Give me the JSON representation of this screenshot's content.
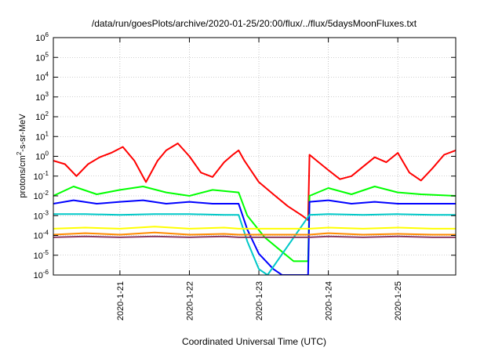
{
  "chart_data": {
    "type": "line",
    "title": "/data/run/goesPlots/archive/2020-01-25/20:00/flux/../flux/5daysMoonFluxes.txt",
    "xlabel": "Coordinated Universal Time (UTC)",
    "ylabel": "protons/cm²-s-sr-MeV",
    "ylabel_parts": {
      "pre": "protons/cm",
      "sup": "2",
      "post": "-s-sr-MeV"
    },
    "yscale": "log",
    "ylim": [
      1e-06,
      1000000.0
    ],
    "y_ticks": [
      {
        "base": "10",
        "exp": "6",
        "value": 1000000.0
      },
      {
        "base": "10",
        "exp": "5",
        "value": 100000.0
      },
      {
        "base": "10",
        "exp": "4",
        "value": 10000.0
      },
      {
        "base": "10",
        "exp": "3",
        "value": 1000.0
      },
      {
        "base": "10",
        "exp": "2",
        "value": 100.0
      },
      {
        "base": "10",
        "exp": "1",
        "value": 10.0
      },
      {
        "base": "10",
        "exp": "0",
        "value": 1.0
      },
      {
        "base": "10",
        "exp": "-1",
        "value": 0.1
      },
      {
        "base": "10",
        "exp": "-2",
        "value": 0.01
      },
      {
        "base": "10",
        "exp": "-3",
        "value": 0.001
      },
      {
        "base": "10",
        "exp": "-4",
        "value": 0.0001
      },
      {
        "base": "10",
        "exp": "-5",
        "value": 1e-05
      },
      {
        "base": "10",
        "exp": "-6",
        "value": 1e-06
      }
    ],
    "xlim": [
      "2020-01-20T01:00",
      "2020-01-25T20:00"
    ],
    "x_ticks": [
      {
        "label": "2020-1-21",
        "value": "2020-01-21T00:00"
      },
      {
        "label": "2020-1-22",
        "value": "2020-01-22T00:00"
      },
      {
        "label": "2020-1-23",
        "value": "2020-01-23T00:00"
      },
      {
        "label": "2020-1-24",
        "value": "2020-01-24T00:00"
      },
      {
        "label": "2020-1-25",
        "value": "2020-01-25T00:00"
      }
    ],
    "grid": true,
    "legend": "none",
    "series": [
      {
        "color": "#ff0000",
        "x": [
          "2020-01-20T01:00",
          "2020-01-20T05:00",
          "2020-01-20T09:00",
          "2020-01-20T13:00",
          "2020-01-20T17:00",
          "2020-01-20T21:00",
          "2020-01-21T01:00",
          "2020-01-21T05:00",
          "2020-01-21T09:00",
          "2020-01-21T13:00",
          "2020-01-21T16:00",
          "2020-01-21T20:00",
          "2020-01-22T00:00",
          "2020-01-22T04:00",
          "2020-01-22T08:00",
          "2020-01-22T12:00",
          "2020-01-22T15:00",
          "2020-01-22T17:00",
          "2020-01-22T19:00",
          "2020-01-23T00:00",
          "2020-01-23T05:00",
          "2020-01-23T10:00",
          "2020-01-23T15:00",
          "2020-01-23T17:00",
          "2020-01-23T17:30",
          "2020-01-23T20:00",
          "2020-01-24T00:00",
          "2020-01-24T04:00",
          "2020-01-24T08:00",
          "2020-01-24T12:00",
          "2020-01-24T16:00",
          "2020-01-24T20:00",
          "2020-01-25T00:00",
          "2020-01-25T04:00",
          "2020-01-25T08:00",
          "2020-01-25T12:00",
          "2020-01-25T16:00",
          "2020-01-25T20:00"
        ],
        "y": [
          0.6,
          0.4,
          0.1,
          0.4,
          0.9,
          1.5,
          3.0,
          0.6,
          0.05,
          0.6,
          2.0,
          4.5,
          1.0,
          0.15,
          0.09,
          0.5,
          1.2,
          2.0,
          0.6,
          0.05,
          0.012,
          0.003,
          0.001,
          0.0006,
          1.2,
          0.6,
          0.2,
          0.07,
          0.1,
          0.3,
          0.9,
          0.5,
          1.5,
          0.15,
          0.06,
          0.25,
          1.2,
          2.0
        ]
      },
      {
        "color": "#00ff00",
        "x": [
          "2020-01-20T01:00",
          "2020-01-20T08:00",
          "2020-01-20T16:00",
          "2020-01-21T00:00",
          "2020-01-21T08:00",
          "2020-01-21T16:00",
          "2020-01-22T00:00",
          "2020-01-22T08:00",
          "2020-01-22T17:00",
          "2020-01-22T20:00",
          "2020-01-23T02:00",
          "2020-01-23T08:00",
          "2020-01-23T12:00",
          "2020-01-23T17:00",
          "2020-01-23T17:30",
          "2020-01-24T00:00",
          "2020-01-24T08:00",
          "2020-01-24T16:00",
          "2020-01-25T00:00",
          "2020-01-25T08:00",
          "2020-01-25T20:00"
        ],
        "y": [
          0.01,
          0.03,
          0.012,
          0.02,
          0.03,
          0.015,
          0.01,
          0.02,
          0.015,
          0.001,
          8e-05,
          1.5e-05,
          5e-06,
          5e-06,
          0.01,
          0.025,
          0.012,
          0.03,
          0.015,
          0.012,
          0.01
        ]
      },
      {
        "color": "#0000ff",
        "x": [
          "2020-01-20T01:00",
          "2020-01-20T08:00",
          "2020-01-20T16:00",
          "2020-01-21T00:00",
          "2020-01-21T08:00",
          "2020-01-21T16:00",
          "2020-01-22T00:00",
          "2020-01-22T08:00",
          "2020-01-22T17:00",
          "2020-01-22T20:00",
          "2020-01-23T00:00",
          "2020-01-23T05:00",
          "2020-01-23T08:00",
          "2020-01-23T17:00",
          "2020-01-23T17:30",
          "2020-01-24T00:00",
          "2020-01-24T08:00",
          "2020-01-24T16:00",
          "2020-01-25T00:00",
          "2020-01-25T08:00",
          "2020-01-25T20:00"
        ],
        "y": [
          0.004,
          0.006,
          0.004,
          0.005,
          0.006,
          0.004,
          0.005,
          0.004,
          0.004,
          0.0002,
          1.2e-05,
          2e-06,
          1e-06,
          1e-06,
          0.005,
          0.006,
          0.004,
          0.005,
          0.004,
          0.004,
          0.004
        ]
      },
      {
        "color": "#00c8c8",
        "x": [
          "2020-01-20T01:00",
          "2020-01-20T12:00",
          "2020-01-21T00:00",
          "2020-01-21T12:00",
          "2020-01-22T00:00",
          "2020-01-22T12:00",
          "2020-01-22T17:00",
          "2020-01-22T20:00",
          "2020-01-23T00:00",
          "2020-01-23T03:00",
          "2020-01-23T17:30",
          "2020-01-24T00:00",
          "2020-01-24T12:00",
          "2020-01-25T00:00",
          "2020-01-25T12:00",
          "2020-01-25T20:00"
        ],
        "y": [
          0.0012,
          0.0012,
          0.0011,
          0.0012,
          0.0012,
          0.0011,
          0.0011,
          5e-05,
          2e-06,
          1e-06,
          0.0011,
          0.0012,
          0.0011,
          0.0012,
          0.0011,
          0.0011
        ]
      },
      {
        "color": "#ffff00",
        "x": [
          "2020-01-20T01:00",
          "2020-01-20T12:00",
          "2020-01-21T00:00",
          "2020-01-21T12:00",
          "2020-01-22T00:00",
          "2020-01-22T12:00",
          "2020-01-22T17:00",
          "2020-01-23T17:30",
          "2020-01-24T00:00",
          "2020-01-24T12:00",
          "2020-01-25T00:00",
          "2020-01-25T12:00",
          "2020-01-25T20:00"
        ],
        "y": [
          0.00022,
          0.00025,
          0.00022,
          0.00028,
          0.00022,
          0.00025,
          0.00022,
          0.00022,
          0.00025,
          0.00022,
          0.00025,
          0.00022,
          0.00022
        ]
      },
      {
        "color": "#ff8c00",
        "x": [
          "2020-01-20T01:00",
          "2020-01-20T12:00",
          "2020-01-21T00:00",
          "2020-01-21T12:00",
          "2020-01-22T00:00",
          "2020-01-22T12:00",
          "2020-01-22T17:00",
          "2020-01-23T17:30",
          "2020-01-24T00:00",
          "2020-01-24T12:00",
          "2020-01-25T00:00",
          "2020-01-25T12:00",
          "2020-01-25T20:00"
        ],
        "y": [
          0.00011,
          0.00013,
          0.00011,
          0.00014,
          0.00011,
          0.00012,
          0.00011,
          0.00011,
          0.00013,
          0.00011,
          0.00012,
          0.00011,
          0.00011
        ]
      },
      {
        "color": "#8b3a62",
        "x": [
          "2020-01-20T01:00",
          "2020-01-20T12:00",
          "2020-01-21T00:00",
          "2020-01-21T12:00",
          "2020-01-22T00:00",
          "2020-01-22T12:00",
          "2020-01-22T17:00",
          "2020-01-23T17:30",
          "2020-01-24T00:00",
          "2020-01-24T12:00",
          "2020-01-25T00:00",
          "2020-01-25T12:00",
          "2020-01-25T20:00"
        ],
        "y": [
          8e-05,
          9e-05,
          8e-05,
          9e-05,
          8e-05,
          9e-05,
          8e-05,
          8e-05,
          9e-05,
          8e-05,
          9e-05,
          8e-05,
          8e-05
        ]
      }
    ]
  }
}
